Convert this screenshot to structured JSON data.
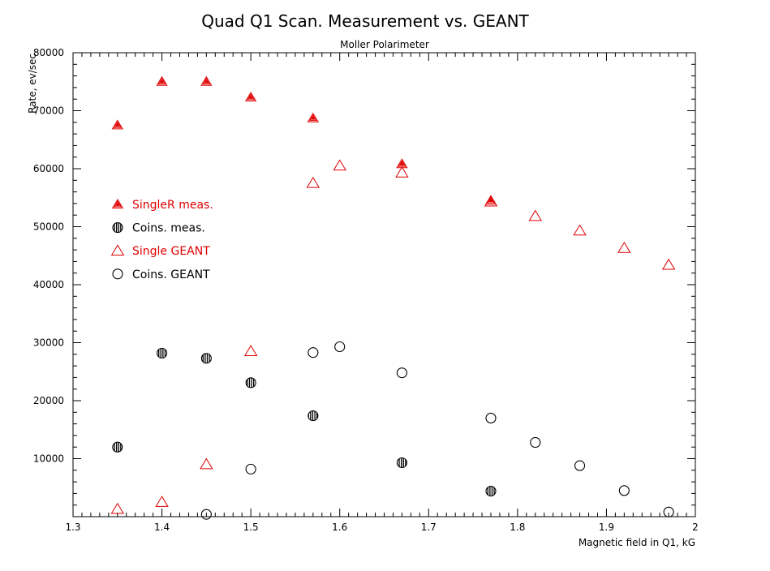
{
  "chart_data": {
    "type": "scatter",
    "title": "Quad Q1 Scan. Measurement vs. GEANT",
    "subtitle": "Moller Polarimeter",
    "xlabel": "Magnetic field in Q1, kG",
    "ylabel": "Rate, ev/sec",
    "xlim": [
      1.3,
      2.0
    ],
    "ylim": [
      0,
      80000
    ],
    "x_ticks": [
      1.3,
      1.4,
      1.5,
      1.6,
      1.7,
      1.8,
      1.9,
      2.0
    ],
    "x_tick_labels": [
      "1.3",
      "1.4",
      "1.5",
      "1.6",
      "1.7",
      "1.8",
      "1.9",
      "2"
    ],
    "y_ticks": [
      10000,
      20000,
      30000,
      40000,
      50000,
      60000,
      70000,
      80000
    ],
    "y_tick_labels": [
      "10000",
      "20000",
      "30000",
      "40000",
      "50000",
      "60000",
      "70000",
      "80000"
    ],
    "grid": false,
    "legend_position": "left",
    "series": [
      {
        "name": "SingleR meas.",
        "marker": "triangle-hatched",
        "color": "#e00000",
        "points": [
          [
            1.35,
            67500
          ],
          [
            1.4,
            75000
          ],
          [
            1.45,
            75000
          ],
          [
            1.5,
            72300
          ],
          [
            1.57,
            68700
          ],
          [
            1.67,
            60800
          ],
          [
            1.77,
            54500
          ]
        ]
      },
      {
        "name": "Coins. meas.",
        "marker": "circle-hatched",
        "color": "#000000",
        "points": [
          [
            1.35,
            12000
          ],
          [
            1.4,
            28200
          ],
          [
            1.45,
            27300
          ],
          [
            1.5,
            23100
          ],
          [
            1.57,
            17400
          ],
          [
            1.67,
            9300
          ],
          [
            1.77,
            4400
          ]
        ]
      },
      {
        "name": "Single GEANT",
        "marker": "triangle-open",
        "color": "#e00000",
        "points": [
          [
            1.35,
            1300
          ],
          [
            1.4,
            2500
          ],
          [
            1.45,
            9000
          ],
          [
            1.5,
            28500
          ],
          [
            1.57,
            57500
          ],
          [
            1.6,
            60500
          ],
          [
            1.67,
            59300
          ],
          [
            1.77,
            54300
          ],
          [
            1.82,
            51800
          ],
          [
            1.87,
            49300
          ],
          [
            1.92,
            46300
          ],
          [
            1.97,
            43400
          ]
        ]
      },
      {
        "name": "Coins. GEANT",
        "marker": "circle-open",
        "color": "#000000",
        "points": [
          [
            1.45,
            400
          ],
          [
            1.5,
            8200
          ],
          [
            1.57,
            28300
          ],
          [
            1.6,
            29300
          ],
          [
            1.67,
            24800
          ],
          [
            1.77,
            17000
          ],
          [
            1.82,
            12800
          ],
          [
            1.87,
            8800
          ],
          [
            1.92,
            4500
          ],
          [
            1.97,
            800
          ]
        ]
      }
    ]
  }
}
